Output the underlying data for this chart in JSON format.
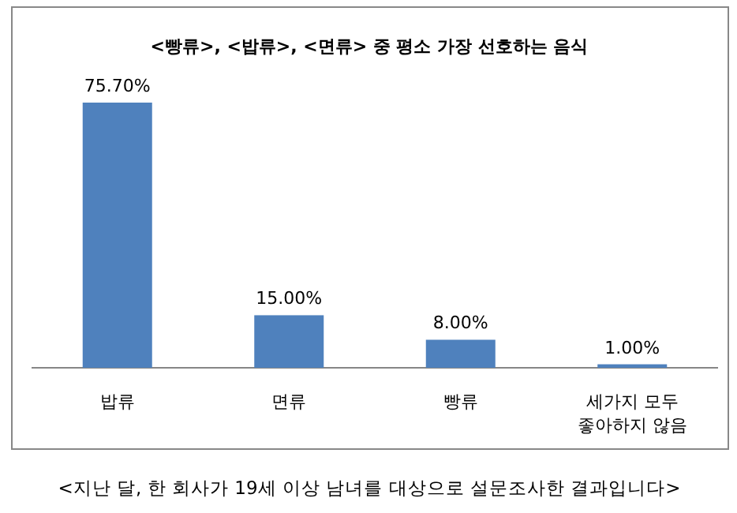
{
  "chart_data": {
    "type": "bar",
    "title": "<빵류>, <밥류>, <면류> 중 평소 가장 선호하는 음식",
    "categories": [
      "밥류",
      "면류",
      "빵류",
      "세가지 모두 좋아하지 않음"
    ],
    "values": [
      75.7,
      15,
      8,
      1
    ],
    "value_labels": [
      "75.70%",
      "15.00%",
      "8.00%",
      "1.00%"
    ],
    "color": "#4f81bd",
    "annotations": [
      "<지난 달, 한 회사가 19세 이상 남녀를 대상으로 설문조사한 결과입니다>"
    ]
  }
}
